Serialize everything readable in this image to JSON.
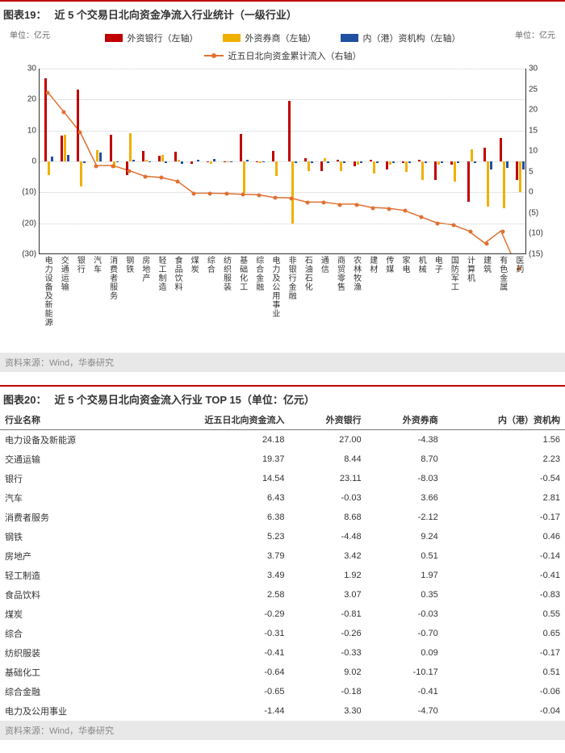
{
  "chart19": {
    "title_num": "图表19：",
    "title_text": "近 5 个交易日北向资金净流入行业统计（一级行业）",
    "unit_left": "单位：亿元",
    "unit_right": "单位：亿元",
    "source": "资料来源：Wind，华泰研究",
    "legend": [
      {
        "label": "外资银行（左轴）",
        "type": "box",
        "color": "#c00000"
      },
      {
        "label": "外资券商（左轴）",
        "type": "box",
        "color": "#f0b000"
      },
      {
        "label": "内（港）资机构（左轴）",
        "type": "box",
        "color": "#2050a0"
      },
      {
        "label": "近五日北向资金累计流入（右轴）",
        "type": "line",
        "color": "#e07030"
      }
    ],
    "yl": {
      "min": -30,
      "max": 30,
      "ticks": [
        30,
        20,
        10,
        0,
        -10,
        -20,
        -30
      ],
      "tick_labels": [
        "30",
        "20",
        "10",
        "0",
        "(10)",
        "(20)",
        "(30)"
      ]
    },
    "yr": {
      "min": -15,
      "max": 30,
      "ticks": [
        30,
        25,
        20,
        15,
        10,
        5,
        0,
        -5,
        -10,
        -15
      ],
      "tick_labels": [
        "30",
        "25",
        "20",
        "15",
        "10",
        "5",
        "0",
        "(5)",
        "(10)",
        "(15)"
      ]
    },
    "categories": [
      "电力设备及新能源",
      "交通运输",
      "银行",
      "汽车",
      "消费者服务",
      "钢铁",
      "房地产",
      "轻工制造",
      "食品饮料",
      "煤炭",
      "综合",
      "纺织服装",
      "基础化工",
      "综合金融",
      "电力及公用事业",
      "非银行金融",
      "石油石化",
      "通信",
      "商贸零售",
      "农林牧渔",
      "建材",
      "传媒",
      "家电",
      "机械",
      "电子",
      "国防军工",
      "计算机",
      "建筑",
      "有色金属",
      "医药"
    ],
    "series": {
      "bank": [
        27.0,
        8.4,
        23.1,
        -0.0,
        8.7,
        -4.5,
        3.4,
        1.9,
        3.1,
        -0.8,
        -0.3,
        -0.3,
        9.0,
        -0.2,
        3.3,
        19.5,
        1.0,
        -3.0,
        0.5,
        -1.5,
        0.5,
        -2.5,
        -0.5,
        0.5,
        -6.0,
        -1.0,
        -13.0,
        4.5,
        7.5,
        -6.0
      ],
      "broker": [
        -4.4,
        8.7,
        -8.0,
        3.7,
        -2.1,
        9.2,
        0.5,
        2.0,
        0.4,
        -0.0,
        -0.7,
        0.1,
        -10.2,
        -0.4,
        -4.7,
        -20.0,
        -3.0,
        1.0,
        -3.0,
        -1.0,
        -4.0,
        -1.0,
        -3.5,
        -6.0,
        -1.0,
        -6.5,
        4.0,
        -14.5,
        -15.0,
        -10.0
      ],
      "hk": [
        1.6,
        2.2,
        -0.5,
        2.8,
        -0.2,
        0.5,
        -0.1,
        -0.4,
        -0.8,
        0.6,
        0.7,
        -0.2,
        0.5,
        -0.1,
        -0.0,
        -0.5,
        -0.5,
        -0.5,
        -0.5,
        -0.5,
        -0.5,
        -0.5,
        -0.5,
        -0.5,
        -0.5,
        -0.5,
        -0.5,
        -2.5,
        -2.0,
        -2.5
      ],
      "cumline": [
        24.2,
        19.4,
        14.5,
        6.4,
        6.4,
        5.2,
        3.8,
        3.5,
        2.6,
        -0.3,
        -0.3,
        -0.4,
        -0.6,
        -0.7,
        -1.4,
        -1.5,
        -2.5,
        -2.5,
        -3.0,
        -3.0,
        -3.8,
        -4.0,
        -4.5,
        -6.0,
        -7.5,
        -8.0,
        -9.5,
        -12.5,
        -9.5,
        -18.5
      ]
    },
    "colors": {
      "bank": "#c00000",
      "broker": "#f0b000",
      "hk": "#2050a0",
      "line": "#e07030",
      "grid": "#cccccc"
    }
  },
  "table20": {
    "title_num": "图表20：",
    "title_text": "近 5 个交易日北向资金流入行业 TOP 15（单位：亿元）",
    "source": "资料来源：Wind，华泰研究",
    "columns": [
      "行业名称",
      "近五日北向资金流入",
      "外资银行",
      "外资券商",
      "内（港）资机构"
    ],
    "rows": [
      [
        "电力设备及新能源",
        "24.18",
        "27.00",
        "-4.38",
        "1.56"
      ],
      [
        "交通运输",
        "19.37",
        "8.44",
        "8.70",
        "2.23"
      ],
      [
        "银行",
        "14.54",
        "23.11",
        "-8.03",
        "-0.54"
      ],
      [
        "汽车",
        "6.43",
        "-0.03",
        "3.66",
        "2.81"
      ],
      [
        "消费者服务",
        "6.38",
        "8.68",
        "-2.12",
        "-0.17"
      ],
      [
        "钢铁",
        "5.23",
        "-4.48",
        "9.24",
        "0.46"
      ],
      [
        "房地产",
        "3.79",
        "3.42",
        "0.51",
        "-0.14"
      ],
      [
        "轻工制造",
        "3.49",
        "1.92",
        "1.97",
        "-0.41"
      ],
      [
        "食品饮料",
        "2.58",
        "3.07",
        "0.35",
        "-0.83"
      ],
      [
        "煤炭",
        "-0.29",
        "-0.81",
        "-0.03",
        "0.55"
      ],
      [
        "综合",
        "-0.31",
        "-0.26",
        "-0.70",
        "0.65"
      ],
      [
        "纺织服装",
        "-0.41",
        "-0.33",
        "0.09",
        "-0.17"
      ],
      [
        "基础化工",
        "-0.64",
        "9.02",
        "-10.17",
        "0.51"
      ],
      [
        "综合金融",
        "-0.65",
        "-0.18",
        "-0.41",
        "-0.06"
      ],
      [
        "电力及公用事业",
        "-1.44",
        "3.30",
        "-4.70",
        "-0.04"
      ]
    ]
  }
}
